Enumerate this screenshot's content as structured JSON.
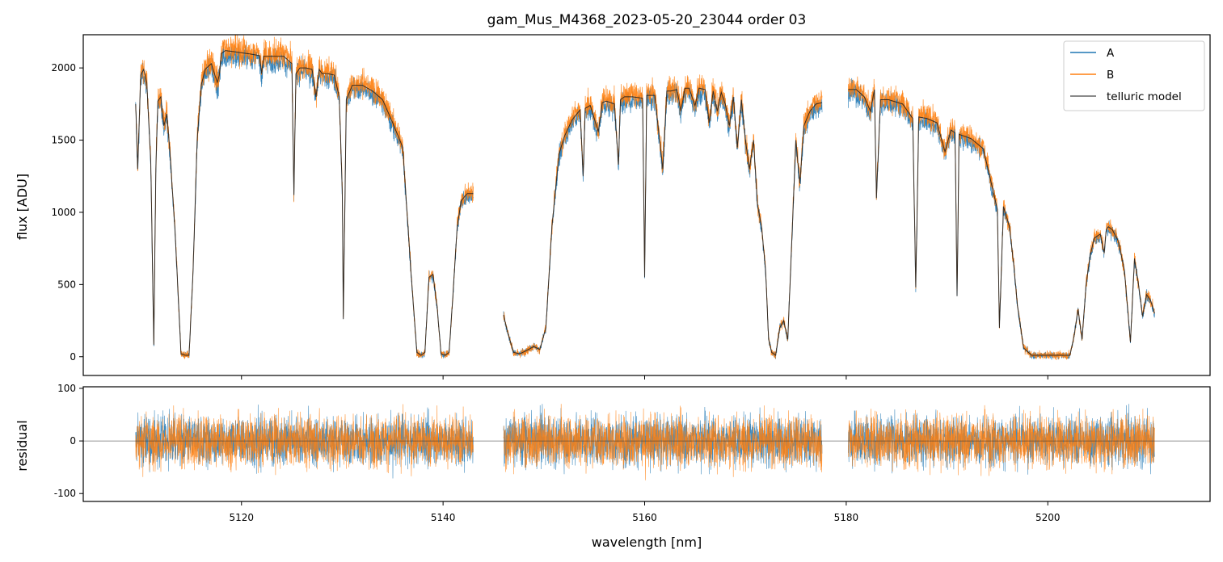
{
  "chart_data": [
    {
      "type": "line",
      "panel": "spectrum",
      "title": "gam_Mus_M4368_2023-05-20_23044  order 03",
      "xlabel": "",
      "ylabel": "flux [ADU]",
      "xlim": [
        5104.3,
        5216.1
      ],
      "ylim": [
        -130,
        2230
      ],
      "xticks": [
        5120,
        5140,
        5160,
        5180,
        5200
      ],
      "yticks": [
        0,
        500,
        1000,
        1500,
        2000
      ],
      "legend": "top-right",
      "grid": false,
      "colors": {
        "A": "#1f77b4",
        "B": "#ff7f0e",
        "model": "#222222"
      },
      "series": [
        {
          "name": "A",
          "role": "observed",
          "noise": 38,
          "offset": -25
        },
        {
          "name": "B",
          "role": "observed",
          "noise": 45,
          "offset": 15
        },
        {
          "name": "telluric model",
          "role": "model"
        }
      ],
      "segments": [
        {
          "x": [
            5109.5,
            5109.7,
            5110.0,
            5110.3,
            5110.6,
            5111.0,
            5111.3,
            5111.5,
            5111.7,
            5112.0,
            5112.3,
            5112.6,
            5112.9,
            5113.1,
            5113.4,
            5113.7,
            5114.0,
            5114.4,
            5114.8,
            5115.2,
            5115.6,
            5116.0,
            5116.4,
            5117.0,
            5117.6,
            5117.8,
            5118.0,
            5118.4,
            5119.0,
            5120.0,
            5121.0,
            5121.8,
            5122.0,
            5122.2,
            5123.0,
            5124.2,
            5125.0,
            5125.2,
            5125.4,
            5125.8,
            5126.4,
            5127.0,
            5127.4,
            5127.7,
            5128.0,
            5128.6,
            5129.2,
            5129.7,
            5130.0,
            5130.1,
            5130.4,
            5131.0,
            5132.0,
            5133.0,
            5134.0,
            5135.0,
            5136.0,
            5136.8,
            5137.4,
            5137.8,
            5138.2,
            5138.6,
            5139.0,
            5139.4,
            5139.8,
            5140.2,
            5140.6,
            5141.0,
            5141.4,
            5141.8,
            5142.4,
            5143.0
          ],
          "model": [
            1750,
            1300,
            1950,
            1990,
            1900,
            1350,
            80,
            1300,
            1770,
            1800,
            1600,
            1680,
            1420,
            1200,
            880,
            450,
            20,
            10,
            10,
            600,
            1500,
            1880,
            1990,
            2030,
            1900,
            1950,
            2100,
            2120,
            2115,
            2105,
            2095,
            2085,
            1960,
            2080,
            2080,
            2080,
            2030,
            1120,
            1960,
            2000,
            2000,
            1990,
            1800,
            1990,
            1960,
            1960,
            1950,
            1800,
            1150,
            260,
            1780,
            1880,
            1880,
            1840,
            1780,
            1620,
            1450,
            600,
            30,
            10,
            30,
            550,
            570,
            350,
            20,
            10,
            30,
            450,
            900,
            1080,
            1130,
            1130
          ]
        },
        {
          "x": [
            5146.0,
            5146.4,
            5147.0,
            5147.6,
            5148.2,
            5149.0,
            5149.6,
            5150.2,
            5150.8,
            5151.5,
            5152.0,
            5152.8,
            5153.6,
            5153.9,
            5154.1,
            5154.6,
            5155.4,
            5155.8,
            5156.2,
            5157.0,
            5157.4,
            5157.6,
            5158.0,
            5158.8,
            5159.8,
            5160.0,
            5160.2,
            5161.0,
            5161.8,
            5162.2,
            5162.6,
            5163.2,
            5163.6,
            5164.0,
            5164.4,
            5165.0,
            5165.4,
            5166.0,
            5166.4,
            5166.8,
            5167.2,
            5167.6,
            5168.0,
            5168.4,
            5168.8,
            5169.2,
            5169.6,
            5170.0,
            5170.4,
            5170.8,
            5171.2,
            5171.6,
            5172.0,
            5172.3,
            5172.6,
            5173.0,
            5173.4,
            5173.8,
            5174.2,
            5174.6,
            5175.0,
            5175.4,
            5175.8,
            5176.4,
            5177.0,
            5177.6
          ],
          "model": [
            290,
            170,
            30,
            20,
            40,
            70,
            50,
            200,
            900,
            1400,
            1520,
            1640,
            1710,
            1250,
            1720,
            1740,
            1560,
            1760,
            1770,
            1750,
            1330,
            1780,
            1800,
            1800,
            1790,
            550,
            1810,
            1810,
            1300,
            1840,
            1840,
            1850,
            1700,
            1860,
            1860,
            1740,
            1860,
            1850,
            1620,
            1840,
            1700,
            1830,
            1750,
            1600,
            1800,
            1450,
            1780,
            1500,
            1300,
            1500,
            1050,
            900,
            600,
            120,
            30,
            10,
            200,
            250,
            120,
            800,
            1500,
            1200,
            1600,
            1700,
            1750,
            1760
          ]
        },
        {
          "x": [
            5180.2,
            5181.0,
            5181.8,
            5182.4,
            5182.8,
            5183.0,
            5183.4,
            5184.2,
            5185.6,
            5186.6,
            5186.9,
            5187.2,
            5188.0,
            5189.0,
            5189.8,
            5190.4,
            5190.8,
            5191.0,
            5191.2,
            5191.6,
            5192.4,
            5193.6,
            5194.4,
            5195.0,
            5195.2,
            5195.6,
            5196.2,
            5196.6,
            5197.0,
            5197.6,
            5198.4,
            5199.0,
            5199.6,
            5200.4,
            5201.4,
            5202.2,
            5202.6,
            5203.0,
            5203.4,
            5203.8,
            5204.2,
            5204.6,
            5205.2,
            5205.6,
            5205.8,
            5206.0,
            5206.4,
            5207.0,
            5207.6,
            5208.2,
            5208.6,
            5209.0,
            5209.4,
            5209.8,
            5210.2,
            5210.6
          ],
          "model": [
            1850,
            1850,
            1800,
            1700,
            1850,
            1100,
            1780,
            1780,
            1750,
            1650,
            480,
            1660,
            1650,
            1620,
            1420,
            1570,
            1550,
            420,
            1540,
            1530,
            1510,
            1440,
            1200,
            1020,
            200,
            1040,
            900,
            650,
            350,
            60,
            10,
            10,
            10,
            10,
            10,
            10,
            140,
            330,
            120,
            500,
            700,
            820,
            850,
            720,
            880,
            900,
            880,
            800,
            600,
            100,
            680,
            500,
            280,
            430,
            390,
            300
          ]
        }
      ]
    },
    {
      "type": "line",
      "panel": "residual",
      "title": "",
      "xlabel": "wavelength [nm]",
      "ylabel": "residual",
      "xlim": [
        5104.3,
        5216.1
      ],
      "ylim": [
        -115,
        103
      ],
      "xticks": [
        5120,
        5140,
        5160,
        5180,
        5200
      ],
      "yticks": [
        -100,
        0,
        100
      ],
      "xticklabels": [
        "5120",
        "5140",
        "5160",
        "5180",
        "5200"
      ],
      "series": [
        {
          "name": "A",
          "noise": 40
        },
        {
          "name": "B",
          "noise": 42
        }
      ],
      "zero_line": 0
    }
  ]
}
